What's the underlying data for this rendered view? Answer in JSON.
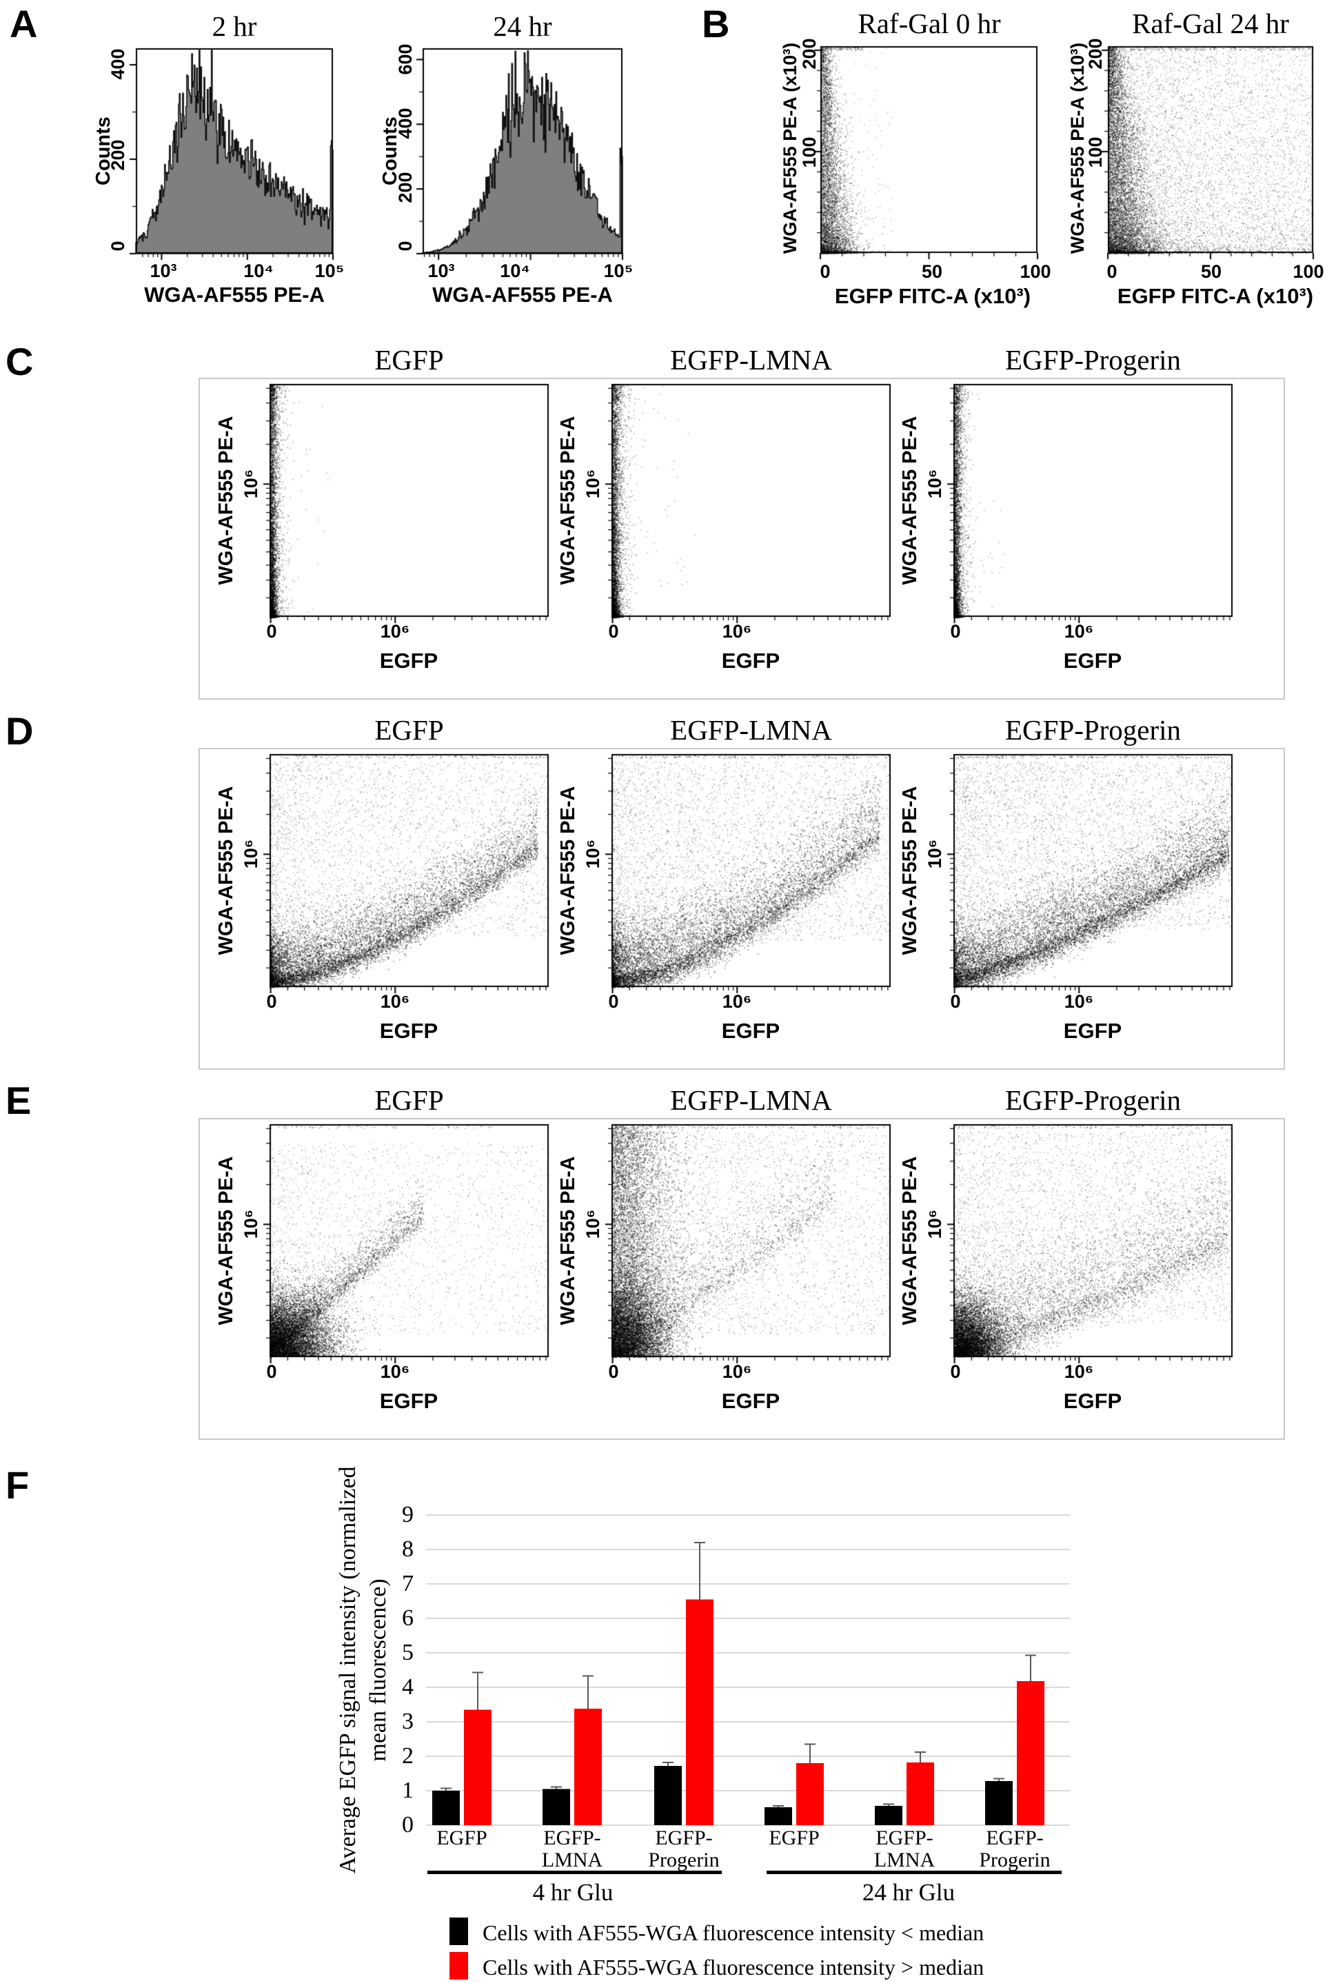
{
  "panel_labels": [
    "A",
    "B",
    "C",
    "D",
    "E",
    "F"
  ],
  "chart_data": [
    {
      "id": "A-2hr",
      "type": "histogram",
      "title": "2 hr",
      "xlabel": "WGA-AF555 PE-A",
      "ylabel": "Counts",
      "xscale": "log",
      "xlim": [
        500,
        100000
      ],
      "ylim": [
        0,
        435
      ],
      "ytick_values": [
        0,
        200,
        400
      ],
      "ytick_labels": [
        "0",
        "200",
        "400"
      ],
      "xtick_values": [
        1000,
        10000,
        100000
      ],
      "xtick_labels": [
        "10³",
        "10⁴",
        "10⁵"
      ],
      "fill": "#7f7f7f",
      "peak": {
        "x": 3000,
        "counts": 355
      },
      "shape": {
        "peak_t": 0.32,
        "sigma_left": 0.13,
        "right_decay": 2.3,
        "edge_spike": 240
      }
    },
    {
      "id": "A-24hr",
      "type": "histogram",
      "title": "24 hr",
      "xlabel": "WGA-AF555 PE-A",
      "ylabel": "Counts",
      "xscale": "log",
      "xlim": [
        670,
        100000
      ],
      "ylim": [
        0,
        635
      ],
      "ytick_values": [
        0,
        200,
        400,
        600
      ],
      "ytick_labels": [
        "0",
        "200",
        "400",
        "600"
      ],
      "xtick_values": [
        1000,
        10000,
        100000
      ],
      "xtick_labels": [
        "10³",
        "10⁴",
        "10⁵"
      ],
      "fill": "#7f7f7f",
      "peak": {
        "x": 11000,
        "counts": 505
      },
      "shape": {
        "peak_t": 0.55,
        "sigma_left": 0.17,
        "sigma_right": 0.2,
        "edge_spike": 300
      }
    },
    {
      "id": "B-RafGal-0hr",
      "type": "scatter",
      "title": "Raf-Gal 0 hr",
      "xlabel": "EGFP FITC-A (x10³)",
      "ylabel": "WGA-AF555 PE-A (x10³)",
      "xlim": [
        0,
        100
      ],
      "ylim": [
        0,
        204
      ],
      "xtick_labels": [
        "0",
        "50",
        "100"
      ],
      "ytick_labels": [
        "100",
        "200"
      ],
      "clouds": [
        {
          "kind": "bwedge",
          "n": 5200,
          "base": 0.022,
          "widen": 0.055,
          "ypow": 2.1,
          "alpha": 0.5
        },
        {
          "kind": "sparse",
          "n": 260,
          "xmax": 0.33,
          "ypow": 1.6,
          "alpha": 0.35
        },
        {
          "kind": "topedge",
          "n": 70,
          "xmax": 0.2,
          "alpha": 0.5
        }
      ]
    },
    {
      "id": "B-RafGal-24hr",
      "type": "scatter",
      "title": "Raf-Gal 24 hr",
      "xlabel": "EGFP FITC-A (x10³)",
      "ylabel": "WGA-AF555 PE-A (x10³)",
      "xlim": [
        0,
        100
      ],
      "ylim": [
        0,
        204
      ],
      "xtick_labels": [
        "0",
        "50",
        "100"
      ],
      "ytick_labels": [
        "100",
        "200"
      ],
      "clouds": [
        {
          "kind": "bwedge",
          "n": 7000,
          "base": 0.03,
          "widen": 0.1,
          "ypow": 1.9,
          "alpha": 0.5
        },
        {
          "kind": "haze",
          "n": 5200,
          "xpow": 1.5,
          "ypow": 1.7,
          "ymin": 0,
          "ymax": 1,
          "alpha": 0.4
        },
        {
          "kind": "sparse",
          "n": 900,
          "xmax": 1.0,
          "ypow": 1.0,
          "alpha": 0.35
        },
        {
          "kind": "topedge",
          "n": 160,
          "xmax": 1.0,
          "alpha": 0.5
        }
      ]
    },
    {
      "id": "C-EGFP",
      "type": "scatter",
      "title": "EGFP",
      "xlabel": "EGFP",
      "ylabel": "WGA-AF555 PE-A",
      "xtick_labels": [
        "0",
        "10⁶"
      ],
      "ytick_labels": [
        "10⁶"
      ],
      "clouds": [
        {
          "kind": "vband",
          "n": 2800,
          "xs": 0.012,
          "ypow": 2.0,
          "alpha": 0.55
        },
        {
          "kind": "vband",
          "n": 1000,
          "xs": 0.028,
          "ypow": 1.15,
          "alpha": 0.4
        },
        {
          "kind": "sparse",
          "n": 60,
          "xmax": 0.22,
          "ypow": 1.2,
          "alpha": 0.35
        },
        {
          "kind": "topleft",
          "n": 70,
          "xs": 0.02,
          "alpha": 0.5
        }
      ]
    },
    {
      "id": "C-EGFP-LMNA",
      "type": "scatter",
      "title": "EGFP-LMNA",
      "xlabel": "EGFP",
      "ylabel": "WGA-AF555 PE-A",
      "xtick_labels": [
        "0",
        "10⁶"
      ],
      "ytick_labels": [
        "10⁶"
      ],
      "clouds": [
        {
          "kind": "vband",
          "n": 2800,
          "xs": 0.013,
          "ypow": 2.0,
          "alpha": 0.55
        },
        {
          "kind": "vband",
          "n": 1100,
          "xs": 0.032,
          "ypow": 1.15,
          "alpha": 0.4
        },
        {
          "kind": "sparse",
          "n": 90,
          "xmax": 0.3,
          "ypow": 1.2,
          "alpha": 0.35
        },
        {
          "kind": "topleft",
          "n": 80,
          "xs": 0.022,
          "alpha": 0.5
        }
      ]
    },
    {
      "id": "C-EGFP-Progerin",
      "type": "scatter",
      "title": "EGFP-Progerin",
      "xlabel": "EGFP",
      "ylabel": "WGA-AF555 PE-A",
      "xtick_labels": [
        "0",
        "10⁶"
      ],
      "ytick_labels": [
        "10⁶"
      ],
      "clouds": [
        {
          "kind": "vband",
          "n": 2700,
          "xs": 0.012,
          "ypow": 2.0,
          "alpha": 0.55
        },
        {
          "kind": "vband",
          "n": 950,
          "xs": 0.028,
          "ypow": 1.2,
          "alpha": 0.4
        },
        {
          "kind": "sparse",
          "n": 50,
          "xmax": 0.18,
          "ypow": 1.2,
          "alpha": 0.35
        },
        {
          "kind": "topleft",
          "n": 60,
          "xs": 0.02,
          "alpha": 0.5
        }
      ]
    },
    {
      "id": "D-EGFP",
      "type": "scatter",
      "title": "EGFP",
      "xlabel": "EGFP",
      "ylabel": "WGA-AF555 PE-A",
      "xtick_labels": [
        "0",
        "10⁶"
      ],
      "ytick_labels": [
        "10⁶"
      ],
      "clouds": [
        {
          "kind": "comet",
          "n": 9000,
          "xpow": 2.1,
          "xmax": 0.96,
          "base": 0.02,
          "a": 0.62,
          "c": 1.5,
          "t": 0.1,
          "alpha": 0.5
        },
        {
          "kind": "haze",
          "n": 2600,
          "xpow": 1.4,
          "ymin": 0.22,
          "ymax": 0.97,
          "ypow": 1,
          "alpha": 0.3
        },
        {
          "kind": "topedge",
          "n": 120,
          "xmax": 1.0,
          "alpha": 0.45
        }
      ]
    },
    {
      "id": "D-EGFP-LMNA",
      "type": "scatter",
      "title": "EGFP-LMNA",
      "xlabel": "EGFP",
      "ylabel": "WGA-AF555 PE-A",
      "xtick_labels": [
        "0",
        "10⁶"
      ],
      "ytick_labels": [
        "10⁶"
      ],
      "clouds": [
        {
          "kind": "comet",
          "n": 8800,
          "xpow": 2.0,
          "xmax": 0.96,
          "base": 0.02,
          "a": 0.68,
          "c": 1.5,
          "t": 0.12,
          "alpha": 0.5
        },
        {
          "kind": "haze",
          "n": 3000,
          "xpow": 1.35,
          "ymin": 0.2,
          "ymax": 0.97,
          "ypow": 1,
          "alpha": 0.3
        },
        {
          "kind": "topedge",
          "n": 130,
          "xmax": 1.0,
          "alpha": 0.45
        }
      ]
    },
    {
      "id": "D-EGFP-Progerin",
      "type": "scatter",
      "title": "EGFP-Progerin",
      "xlabel": "EGFP",
      "ylabel": "WGA-AF555 PE-A",
      "xtick_labels": [
        "0",
        "10⁶"
      ],
      "ytick_labels": [
        "10⁶"
      ],
      "clouds": [
        {
          "kind": "comet",
          "n": 9500,
          "xpow": 1.55,
          "xmax": 0.985,
          "base": 0.03,
          "a": 0.55,
          "c": 1.25,
          "t": 0.11,
          "alpha": 0.5
        },
        {
          "kind": "haze",
          "n": 3600,
          "xpow": 1.2,
          "ymin": 0.25,
          "ymax": 0.97,
          "ypow": 1,
          "alpha": 0.3
        },
        {
          "kind": "topedge",
          "n": 150,
          "xmax": 1.0,
          "alpha": 0.45
        }
      ]
    },
    {
      "id": "E-EGFP",
      "type": "scatter",
      "title": "EGFP",
      "xlabel": "EGFP",
      "ylabel": "WGA-AF555 PE-A",
      "xtick_labels": [
        "0",
        "10⁶"
      ],
      "ytick_labels": [
        "10⁶"
      ],
      "clouds": [
        {
          "kind": "blob",
          "n": 6500,
          "xs": 0.105,
          "ys": 0.125,
          "alpha": 0.5
        },
        {
          "kind": "comet",
          "n": 2600,
          "xpow": 1.8,
          "xmax": 0.55,
          "base": 0.02,
          "a": 1.05,
          "c": 1.0,
          "t": 0.07,
          "alpha": 0.45
        },
        {
          "kind": "haze",
          "n": 1700,
          "xpow": 1.35,
          "ymin": 0.1,
          "ymax": 0.92,
          "ypow": 1,
          "alpha": 0.28
        },
        {
          "kind": "topedge",
          "n": 60,
          "xmax": 0.8,
          "alpha": 0.4
        }
      ]
    },
    {
      "id": "E-EGFP-LMNA",
      "type": "scatter",
      "title": "EGFP-LMNA",
      "xlabel": "EGFP",
      "ylabel": "WGA-AF555 PE-A",
      "xtick_labels": [
        "0",
        "10⁶"
      ],
      "ytick_labels": [
        "10⁶"
      ],
      "clouds": [
        {
          "kind": "blob",
          "n": 5000,
          "xs": 0.09,
          "ys": 0.15,
          "alpha": 0.5
        },
        {
          "kind": "vband",
          "n": 6000,
          "xs": 0.105,
          "ypow": 1.15,
          "alpha": 0.45
        },
        {
          "kind": "comet",
          "n": 2200,
          "xpow": 1.7,
          "xmax": 0.8,
          "base": 0.03,
          "a": 0.85,
          "c": 1.1,
          "t": 0.13,
          "alpha": 0.4
        },
        {
          "kind": "haze",
          "n": 2600,
          "xpow": 1.3,
          "ymin": 0.1,
          "ymax": 0.97,
          "ypow": 1,
          "alpha": 0.3
        },
        {
          "kind": "topedge",
          "n": 110,
          "xmax": 1.0,
          "alpha": 0.4
        }
      ]
    },
    {
      "id": "E-EGFP-Progerin",
      "type": "scatter",
      "title": "EGFP-Progerin",
      "xlabel": "EGFP",
      "ylabel": "WGA-AF555 PE-A",
      "xtick_labels": [
        "0",
        "10⁶"
      ],
      "ytick_labels": [
        "10⁶"
      ],
      "clouds": [
        {
          "kind": "blob",
          "n": 5500,
          "xs": 0.085,
          "ys": 0.115,
          "alpha": 0.5
        },
        {
          "kind": "comet",
          "n": 4800,
          "xpow": 1.45,
          "xmax": 0.98,
          "base": 0.03,
          "a": 0.5,
          "c": 1.2,
          "t": 0.16,
          "alpha": 0.42
        },
        {
          "kind": "haze",
          "n": 2800,
          "xpow": 1.25,
          "ymin": 0.15,
          "ymax": 0.97,
          "ypow": 1,
          "alpha": 0.3
        },
        {
          "kind": "topedge",
          "n": 100,
          "xmax": 1.0,
          "alpha": 0.4
        }
      ]
    },
    {
      "id": "F-bar",
      "type": "bar",
      "ylabel": "Average EGFP signal intensity (normalized mean fluorescence)",
      "ylabel_lines": [
        "Average EGFP signal intensity (normalized",
        "mean fluorescence)"
      ],
      "ylim": [
        0,
        9
      ],
      "ytick_labels": [
        "0",
        "1",
        "2",
        "3",
        "4",
        "5",
        "6",
        "7",
        "8",
        "9"
      ],
      "grid": true,
      "categories": [
        "EGFP",
        "EGFP-LMNA",
        "EGFP-Progerin",
        "EGFP",
        "EGFP-LMNA",
        "EGFP-Progerin"
      ],
      "cat_lines": [
        [
          "EGFP",
          ""
        ],
        [
          "EGFP-",
          "LMNA"
        ],
        [
          "EGFP-",
          "Progerin"
        ],
        [
          "EGFP",
          ""
        ],
        [
          "EGFP-",
          "LMNA"
        ],
        [
          "EGFP-",
          "Progerin"
        ]
      ],
      "sections": [
        "4 hr Glu",
        "24 hr Glu"
      ],
      "series": [
        {
          "name": "Cells with AF555-WGA fluorescence intensity < median",
          "color": "#000000",
          "values": [
            1.0,
            1.05,
            1.72,
            0.52,
            0.56,
            1.28
          ],
          "errors": [
            0.07,
            0.06,
            0.1,
            0.04,
            0.05,
            0.07
          ]
        },
        {
          "name": "Cells with AF555-WGA fluorescence intensity > median",
          "color": "#ff0000",
          "values": [
            3.35,
            3.38,
            6.55,
            1.8,
            1.82,
            4.18
          ],
          "errors": [
            1.08,
            0.95,
            1.65,
            0.55,
            0.3,
            0.75
          ]
        }
      ],
      "gridline_color": "#d9d9d9",
      "error_color": "#595959"
    }
  ]
}
